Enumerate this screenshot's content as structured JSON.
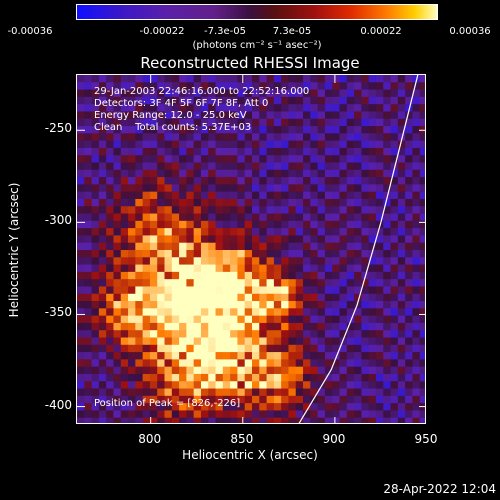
{
  "colorbar": {
    "tick_labels": [
      "-0.00036",
      "-0.00022",
      "-7.3e-05",
      "7.3e-05",
      "0.00022",
      "0.00036"
    ],
    "tick_values": [
      -0.00036,
      -0.00022,
      -7.3e-05,
      7.3e-05,
      0.00022,
      0.00036
    ],
    "unit": "(photons cm⁻² s⁻¹ asec⁻²)"
  },
  "info": {
    "line1": "29-Jan-2003 22:46:16.000 to 22:52:16.000",
    "line2": "Detectors: 3F 4F 5F 6F 7F 8F, Att 0",
    "line3": "Energy Range: 12.0 - 25.0 keV",
    "line4": "Clean    Total counts: 5.37E+03"
  },
  "peak_text": "Position of Peak = [826,-226]",
  "datestamp": "28-Apr-2022 12:04",
  "chart_data": {
    "type": "heatmap",
    "title": "Reconstructed RHESSI Image",
    "xlabel": "Heliocentric X (arcsec)",
    "ylabel": "Heliocentric Y (arcsec)",
    "xlim": [
      760,
      950
    ],
    "ylim": [
      -410,
      -220
    ],
    "xticks": [
      800,
      850,
      900,
      950
    ],
    "yticks": [
      -250,
      -300,
      -350,
      -400
    ],
    "limb_line": [
      [
        880,
        -410
      ],
      [
        898,
        -380
      ],
      [
        912,
        -345
      ],
      [
        925,
        -300
      ],
      [
        935,
        -260
      ],
      [
        945,
        -220
      ]
    ],
    "colormap": [
      "#1010ff",
      "#5a20a8",
      "#3a1040",
      "#a01010",
      "#ff7a00",
      "#ffffc0"
    ],
    "grid": false
  }
}
